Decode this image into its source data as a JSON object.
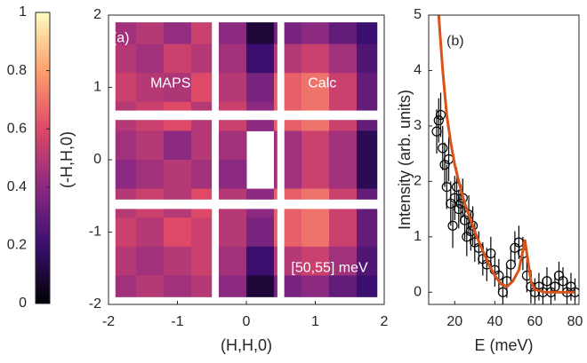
{
  "chart_data": [
    {
      "type": "colorbar",
      "ylim": [
        0,
        1
      ],
      "yticks": [
        0,
        0.2,
        0.4,
        0.6,
        0.8,
        1
      ],
      "colors": [
        "#000004",
        "#3b0f70",
        "#8c2981",
        "#de4968",
        "#fe9f6d",
        "#fcfdbf"
      ]
    },
    {
      "type": "heatmap",
      "xlabel": "(H,H,0)",
      "ylabel": "(-H,H,0)",
      "xlim": [
        -2,
        2
      ],
      "ylim": [
        -2,
        2
      ],
      "xticks": [
        -2,
        -1,
        0,
        1,
        2
      ],
      "yticks": [
        -2,
        -1,
        0,
        1,
        2
      ],
      "x": [
        -1.8,
        -1.4,
        -1.0,
        -0.6,
        -0.2,
        0.2,
        0.6,
        1.0,
        1.4,
        1.8
      ],
      "y": [
        1.8,
        1.4,
        1.0,
        0.6,
        0.2,
        -0.2,
        -0.6,
        -1.0,
        -1.4,
        -1.8
      ],
      "z": [
        [
          0.45,
          0.5,
          0.42,
          0.55,
          0.4,
          0.1,
          0.35,
          0.4,
          0.3,
          0.2
        ],
        [
          0.5,
          0.45,
          0.55,
          0.5,
          0.45,
          0.2,
          0.5,
          0.55,
          0.45,
          0.25
        ],
        [
          0.55,
          0.5,
          0.48,
          0.6,
          0.5,
          0.35,
          0.65,
          0.7,
          0.55,
          0.3
        ],
        [
          0.5,
          0.55,
          0.6,
          0.5,
          0.55,
          0.4,
          0.65,
          0.7,
          0.55,
          0.3
        ],
        [
          0.45,
          0.5,
          0.4,
          0.5,
          0.45,
          null,
          0.45,
          0.55,
          0.45,
          0.15
        ],
        [
          0.4,
          0.45,
          0.5,
          0.45,
          0.4,
          null,
          0.45,
          0.55,
          0.45,
          0.15
        ],
        [
          0.5,
          0.55,
          0.5,
          0.6,
          0.5,
          0.4,
          0.65,
          0.7,
          0.55,
          0.3
        ],
        [
          0.55,
          0.5,
          0.6,
          0.55,
          0.5,
          0.35,
          0.65,
          0.7,
          0.55,
          0.3
        ],
        [
          0.5,
          0.45,
          0.5,
          0.55,
          0.45,
          0.2,
          0.5,
          0.55,
          0.45,
          0.25
        ],
        [
          0.45,
          0.5,
          0.45,
          0.5,
          0.4,
          0.1,
          0.35,
          0.4,
          0.3,
          0.2
        ]
      ],
      "annotations": [
        "(a)",
        "MAPS",
        "Calc",
        "[50,55] meV"
      ]
    },
    {
      "type": "scatter",
      "xlabel": "E (meV)",
      "ylabel": "Intensity (arb. units)",
      "annotation": "(b)",
      "xlim": [
        7,
        82
      ],
      "ylim": [
        -0.22,
        5
      ],
      "xticks": [
        20,
        40,
        60,
        80
      ],
      "yticks": [
        0,
        1,
        2,
        3,
        4,
        5
      ],
      "series": [
        {
          "type": "scatter",
          "color": "#000000",
          "x": [
            11,
            12,
            13,
            14,
            15,
            16,
            17,
            18,
            19,
            20,
            21,
            22,
            23,
            24,
            25,
            26,
            27,
            28,
            29,
            30,
            32,
            34,
            36,
            38,
            40,
            42,
            44,
            46,
            48,
            50,
            52,
            54,
            56,
            58,
            60,
            62,
            64,
            66,
            68,
            70,
            72,
            74,
            76,
            78,
            80
          ],
          "values": [
            2.9,
            3.1,
            3.2,
            2.6,
            2.3,
            1.9,
            2.4,
            1.6,
            1.2,
            1.7,
            1.9,
            1.5,
            1.6,
            1.7,
            1.3,
            1.0,
            1.4,
            1.1,
            1.2,
            0.9,
            0.8,
            0.6,
            0.5,
            0.7,
            0.4,
            0.3,
            0.0,
            0.2,
            0.5,
            0.8,
            0.9,
            0.7,
            0.3,
            0.1,
            0.0,
            0.1,
            0.0,
            0.2,
            0.0,
            0.1,
            0.3,
            0.2,
            0.0,
            0.1,
            0.0
          ],
          "errors": [
            0.4,
            0.4,
            0.4,
            0.4,
            0.4,
            0.4,
            0.4,
            0.4,
            0.4,
            0.4,
            0.35,
            0.35,
            0.35,
            0.35,
            0.35,
            0.35,
            0.35,
            0.35,
            0.35,
            0.35,
            0.3,
            0.3,
            0.3,
            0.3,
            0.3,
            0.3,
            0.3,
            0.3,
            0.3,
            0.3,
            0.3,
            0.3,
            0.3,
            0.3,
            0.25,
            0.25,
            0.25,
            0.25,
            0.25,
            0.25,
            0.25,
            0.25,
            0.25,
            0.25,
            0.25
          ]
        },
        {
          "type": "line",
          "color": "#d95319",
          "x": [
            12,
            14,
            16,
            18,
            20,
            22,
            25,
            28,
            31,
            34,
            37,
            40,
            43,
            46,
            49,
            52,
            54,
            55,
            56,
            58,
            60,
            65,
            70,
            75,
            80
          ],
          "values": [
            5.0,
            4.0,
            3.2,
            2.7,
            2.3,
            2.0,
            1.6,
            1.3,
            1.0,
            0.75,
            0.5,
            0.3,
            0.15,
            0.1,
            0.2,
            0.4,
            0.75,
            0.95,
            0.7,
            0.2,
            0.05,
            0.0,
            0.0,
            0.0,
            0.0
          ]
        }
      ]
    }
  ]
}
